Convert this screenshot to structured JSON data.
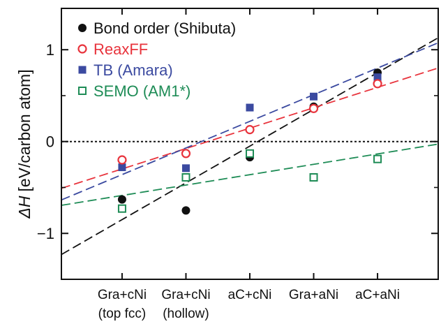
{
  "chart_data": {
    "type": "scatter",
    "ylabel_symbol": "ΔH",
    "ylabel_unit": "[eV/carbon atom]",
    "categories": [
      [
        "Gra+cNi",
        "(top fcc)"
      ],
      [
        "Gra+cNi",
        "(hollow)"
      ],
      [
        "aC+cNi"
      ],
      [
        "Gra+aNi"
      ],
      [
        "aC+aNi"
      ]
    ],
    "x": [
      1,
      2,
      3,
      4,
      5
    ],
    "xlim": [
      0.05,
      5.95
    ],
    "ylim": [
      -1.5,
      1.45
    ],
    "yticks": [
      -1,
      0,
      1
    ],
    "ytick_labels": [
      "−1",
      "0",
      "1"
    ],
    "zero_line": true,
    "legend_position": "top-left",
    "series": [
      {
        "name": "Bond order (Shibuta)",
        "color": "#111111",
        "marker": "filled-circle",
        "values": [
          -0.63,
          -0.75,
          -0.17,
          0.38,
          0.75
        ],
        "fit": {
          "slope": 0.4,
          "intercept": -1.25
        }
      },
      {
        "name": "ReaxFF",
        "color": "#e8333c",
        "marker": "open-circle",
        "values": [
          -0.2,
          -0.13,
          0.13,
          0.36,
          0.63
        ],
        "fit": {
          "slope": 0.222,
          "intercept": -0.52
        }
      },
      {
        "name": "TB (Amara)",
        "color": "#3b4aa0",
        "marker": "filled-square",
        "values": [
          -0.28,
          -0.29,
          0.37,
          0.49,
          0.7
        ],
        "fit": {
          "slope": 0.29,
          "intercept": -0.65
        }
      },
      {
        "name": "SEMO (AM1*)",
        "color": "#1e8c56",
        "marker": "open-square",
        "values": [
          -0.73,
          -0.39,
          -0.13,
          -0.39,
          -0.19
        ],
        "fit": {
          "slope": 0.113,
          "intercept": -0.7
        }
      }
    ]
  }
}
